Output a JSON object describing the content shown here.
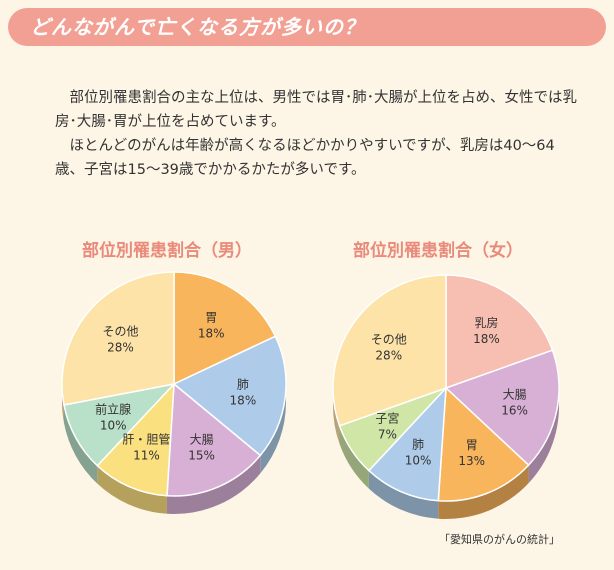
{
  "header": {
    "title": "どんながんで亡くなる方が多いの？"
  },
  "intro": {
    "paragraphs": [
      "部位別罹患割合の主な上位は、男性では胃･肺･大腸が上位を占め、女性では乳房･大腸･胃が上位を占めています。",
      "ほとんどのがんは年齢が高くなるほどかかりやすいですが、乳房は40～64歳、子宮は15～39歳でかかるかたが多いです。"
    ]
  },
  "source": "「愛知県のがんの統計」",
  "chart_data": [
    {
      "type": "pie",
      "title": "部位別罹患割合（男）",
      "slices": [
        {
          "label": "胃",
          "value": 18,
          "display": "18%",
          "color": "#f8b55c"
        },
        {
          "label": "肺",
          "value": 18,
          "display": "18%",
          "color": "#aeccea"
        },
        {
          "label": "大腸",
          "value": 15,
          "display": "15%",
          "color": "#d8b0d6"
        },
        {
          "label": "肝・胆管",
          "value": 11,
          "display": "11%",
          "color": "#fbe07f"
        },
        {
          "label": "前立腺",
          "value": 10,
          "display": "10%",
          "color": "#b9e0c8"
        },
        {
          "label": "その他",
          "value": 28,
          "display": "28%",
          "color": "#fde3a8"
        }
      ]
    },
    {
      "type": "pie",
      "title": "部位別罹患割合（女）",
      "slices": [
        {
          "label": "乳房",
          "value": 18,
          "display": "18%",
          "color": "#f6bfb1"
        },
        {
          "label": "大腸",
          "value": 16,
          "display": "16%",
          "color": "#d8b0d6"
        },
        {
          "label": "胃",
          "value": 13,
          "display": "13%",
          "color": "#f8b55c"
        },
        {
          "label": "肺",
          "value": 10,
          "display": "10%",
          "color": "#aeccea"
        },
        {
          "label": "子宮",
          "value": 7,
          "display": "7%",
          "color": "#cfe6a6"
        },
        {
          "label": "その他",
          "value": 28,
          "display": "28%",
          "color": "#fde3a8"
        }
      ]
    }
  ]
}
